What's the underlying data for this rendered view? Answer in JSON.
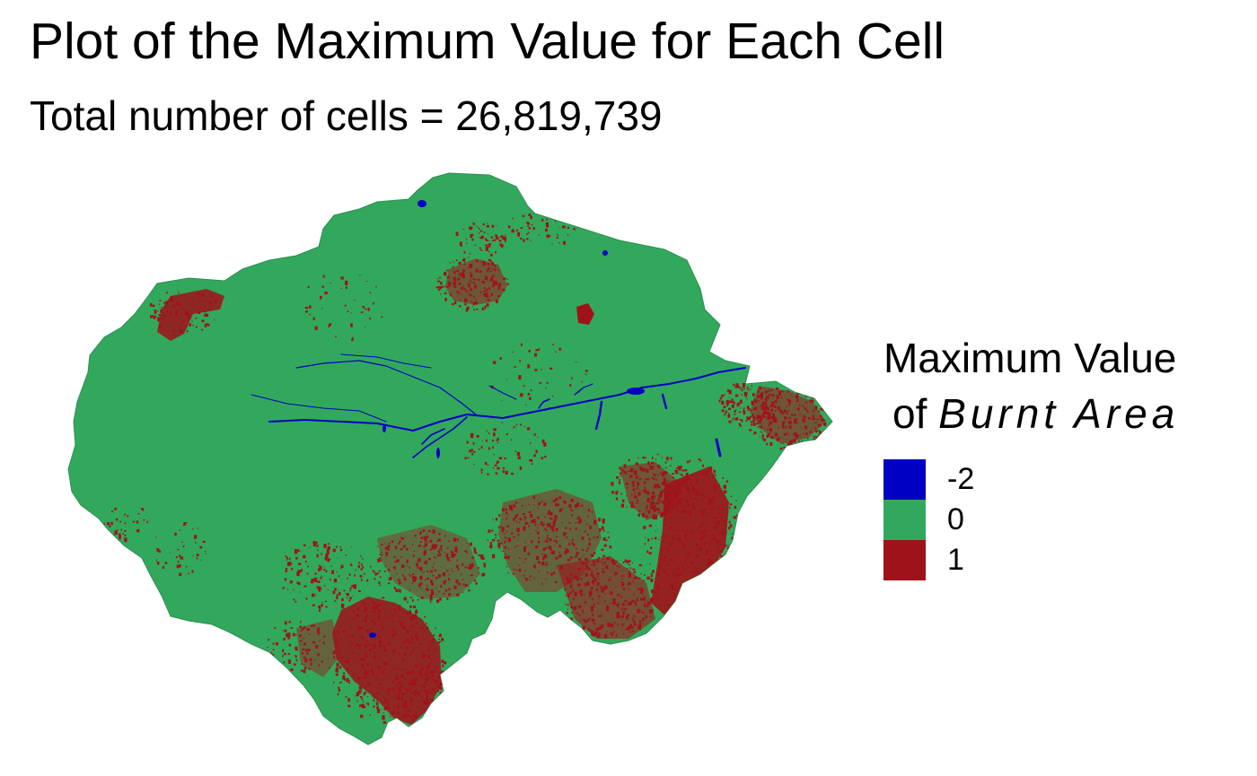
{
  "title": "Plot of the Maximum Value for Each Cell",
  "subtitle": "Total number of cells = 26,819,739",
  "legend": {
    "title_line1": "Maximum Value",
    "title_line2_prefix": "of",
    "title_line2_italic": "Burnt Area",
    "items": [
      {
        "label": "-2",
        "color": "#0000c4"
      },
      {
        "label": "0",
        "color": "#32a85c"
      },
      {
        "label": "1",
        "color": "#a0121a"
      }
    ]
  },
  "colors": {
    "land": "#32a85c",
    "burnt": "#a0121a",
    "water": "#0000c4"
  }
}
